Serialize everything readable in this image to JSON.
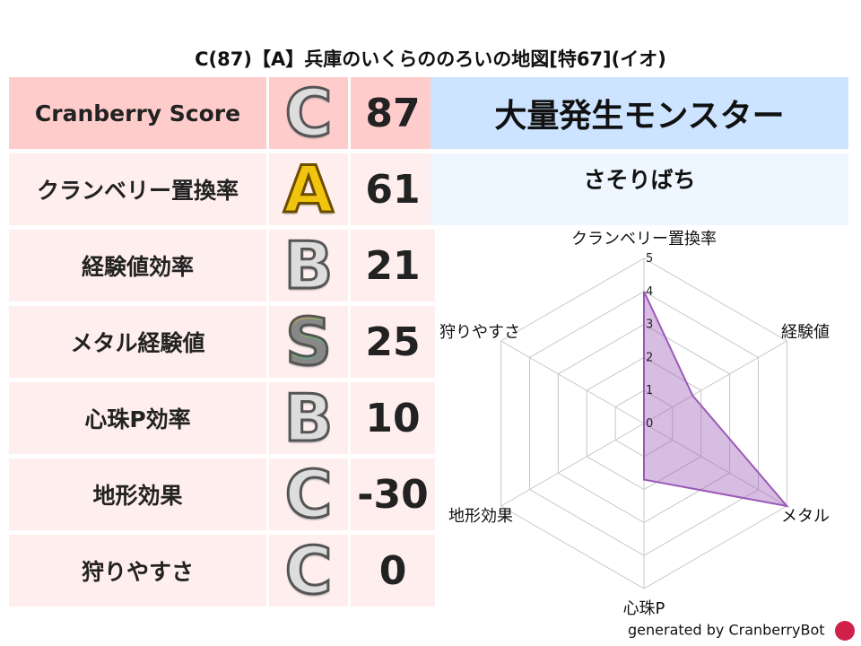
{
  "title": "C(87)【A】兵庫のいくらののろいの地図[特67](イオ)",
  "rows": [
    {
      "label": "Cranberry Score",
      "rank": "C",
      "value": "87",
      "rank_style": "silver"
    },
    {
      "label": "クランベリー置換率",
      "rank": "A",
      "value": "61",
      "rank_style": "gold"
    },
    {
      "label": "経験値効率",
      "rank": "B",
      "value": "21",
      "rank_style": "silver"
    },
    {
      "label": "メタル経験値",
      "rank": "S",
      "value": "25",
      "rank_style": "rainbow"
    },
    {
      "label": "心珠P効率",
      "rank": "B",
      "value": "10",
      "rank_style": "silver"
    },
    {
      "label": "地形効果",
      "rank": "C",
      "value": "-30",
      "rank_style": "silver"
    },
    {
      "label": "狩りやすさ",
      "rank": "C",
      "value": "0",
      "rank_style": "silver"
    }
  ],
  "monster": {
    "header": "大量発生モンスター",
    "name": "さそりばち"
  },
  "colors": {
    "header_row": "#ffcccc",
    "row": "#ffeeee",
    "right_header": "#cce4ff",
    "right_sub": "#eef6ff",
    "radar": "#9b59b6"
  },
  "chart_data": {
    "type": "radar",
    "axes": [
      "クランベリー置換率",
      "経験値",
      "メタル",
      "心珠P",
      "地形効果",
      "狩りやすさ"
    ],
    "values": [
      4,
      1.7,
      5,
      1.7,
      0,
      0
    ],
    "range": [
      0,
      5
    ],
    "ticks": [
      "0",
      "1",
      "2",
      "3",
      "4",
      "5"
    ]
  },
  "footer": "generated by CranberryBot"
}
